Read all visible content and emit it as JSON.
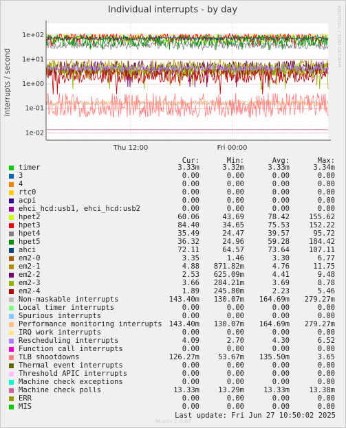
{
  "chart_data": {
    "type": "line",
    "title": "Individual interrupts - by day",
    "ylabel": "interrupts / second",
    "xlabel": "",
    "yscale": "log",
    "ylim": [
      0.005,
      300
    ],
    "yticks": [
      "1e+02",
      "1e+01",
      "1e+00",
      "1e-01",
      "1e-02"
    ],
    "ytick_values": [
      100,
      10,
      1,
      0.1,
      0.01
    ],
    "xticks": [
      "Thu 12:00",
      "Fri 00:00"
    ],
    "grid": true,
    "side_label": "RRDTOOL / TOBI OETIKER",
    "columns": [
      "Cur:",
      "Min:",
      "Avg:",
      "Max:"
    ],
    "series": [
      {
        "name": "timer",
        "color": "#00cc00",
        "cur": "3.33m",
        "min": "3.32m",
        "avg": "3.33m",
        "max": "3.34m"
      },
      {
        "name": "3",
        "color": "#0066b3",
        "cur": "0.00",
        "min": "0.00",
        "avg": "0.00",
        "max": "0.00"
      },
      {
        "name": "4",
        "color": "#ff8000",
        "cur": "0.00",
        "min": "0.00",
        "avg": "0.00",
        "max": "0.00"
      },
      {
        "name": "rtc0",
        "color": "#ffcc00",
        "cur": "0.00",
        "min": "0.00",
        "avg": "0.00",
        "max": "0.00"
      },
      {
        "name": "acpi",
        "color": "#330099",
        "cur": "0.00",
        "min": "0.00",
        "avg": "0.00",
        "max": "0.00"
      },
      {
        "name": "ehci_hcd:usb1, ehci_hcd:usb2",
        "color": "#990099",
        "cur": "0.00",
        "min": "0.00",
        "avg": "0.00",
        "max": "0.00"
      },
      {
        "name": "hpet2",
        "color": "#ccff00",
        "cur": "60.06",
        "min": "43.69",
        "avg": "78.42",
        "max": "155.62"
      },
      {
        "name": "hpet3",
        "color": "#ff0000",
        "cur": "84.40",
        "min": "34.65",
        "avg": "75.53",
        "max": "152.22"
      },
      {
        "name": "hpet4",
        "color": "#808080",
        "cur": "35.49",
        "min": "24.47",
        "avg": "39.57",
        "max": "95.72"
      },
      {
        "name": "hpet5",
        "color": "#008f00",
        "cur": "36.32",
        "min": "24.96",
        "avg": "59.28",
        "max": "184.42"
      },
      {
        "name": "ahci",
        "color": "#00487d",
        "cur": "72.11",
        "min": "64.57",
        "avg": "73.64",
        "max": "107.11"
      },
      {
        "name": "em2-0",
        "color": "#b35a00",
        "cur": "3.35",
        "min": "1.46",
        "avg": "3.30",
        "max": "6.77"
      },
      {
        "name": "em2-1",
        "color": "#b38f00",
        "cur": "4.88",
        "min": "871.82m",
        "avg": "4.76",
        "max": "11.75"
      },
      {
        "name": "em2-2",
        "color": "#6b006b",
        "cur": "2.53",
        "min": "625.09m",
        "avg": "4.41",
        "max": "9.48"
      },
      {
        "name": "em2-3",
        "color": "#8fb300",
        "cur": "3.66",
        "min": "284.21m",
        "avg": "3.69",
        "max": "8.78"
      },
      {
        "name": "em2-4",
        "color": "#b30000",
        "cur": "1.89",
        "min": "245.80m",
        "avg": "2.23",
        "max": "5.46"
      },
      {
        "name": "Non-maskable interrupts",
        "color": "#bebebe",
        "cur": "143.40m",
        "min": "130.07m",
        "avg": "164.69m",
        "max": "279.27m"
      },
      {
        "name": "Local timer interrupts",
        "color": "#80ff80",
        "cur": "0.00",
        "min": "0.00",
        "avg": "0.00",
        "max": "0.00"
      },
      {
        "name": "Spurious interrupts",
        "color": "#80c9ff",
        "cur": "0.00",
        "min": "0.00",
        "avg": "0.00",
        "max": "0.00"
      },
      {
        "name": "Performance monitoring interrupts",
        "color": "#ffc080",
        "cur": "143.40m",
        "min": "130.07m",
        "avg": "164.69m",
        "max": "279.27m"
      },
      {
        "name": "IRQ work interrupts",
        "color": "#ffe680",
        "cur": "0.00",
        "min": "0.00",
        "avg": "0.00",
        "max": "0.00"
      },
      {
        "name": "Rescheduling interrupts",
        "color": "#aa80ff",
        "cur": "4.09",
        "min": "2.70",
        "avg": "4.30",
        "max": "6.52"
      },
      {
        "name": "Function call interrupts",
        "color": "#ee00cc",
        "cur": "0.00",
        "min": "0.00",
        "avg": "0.00",
        "max": "0.00"
      },
      {
        "name": "TLB shootdowns",
        "color": "#ff8080",
        "cur": "126.27m",
        "min": "53.67m",
        "avg": "135.50m",
        "max": "3.65"
      },
      {
        "name": "Thermal event interrupts",
        "color": "#666600",
        "cur": "0.00",
        "min": "0.00",
        "avg": "0.00",
        "max": "0.00"
      },
      {
        "name": "Threshold APIC interrupts",
        "color": "#ffbfff",
        "cur": "0.00",
        "min": "0.00",
        "avg": "0.00",
        "max": "0.00"
      },
      {
        "name": "Machine check exceptions",
        "color": "#00ffcc",
        "cur": "0.00",
        "min": "0.00",
        "avg": "0.00",
        "max": "0.00"
      },
      {
        "name": "Machine check polls",
        "color": "#cc6699",
        "cur": "13.33m",
        "min": "13.29m",
        "avg": "13.33m",
        "max": "13.38m"
      },
      {
        "name": "ERR",
        "color": "#999900",
        "cur": "0.00",
        "min": "0.00",
        "avg": "0.00",
        "max": "0.00"
      },
      {
        "name": "MIS",
        "color": "#00cc00",
        "cur": "0.00",
        "min": "0.00",
        "avg": "0.00",
        "max": "0.00"
      }
    ]
  },
  "footer": {
    "last_update": "Last update: Fri Jun 27 10:50:02 2025",
    "watermark": "Munin 2.0.67"
  }
}
